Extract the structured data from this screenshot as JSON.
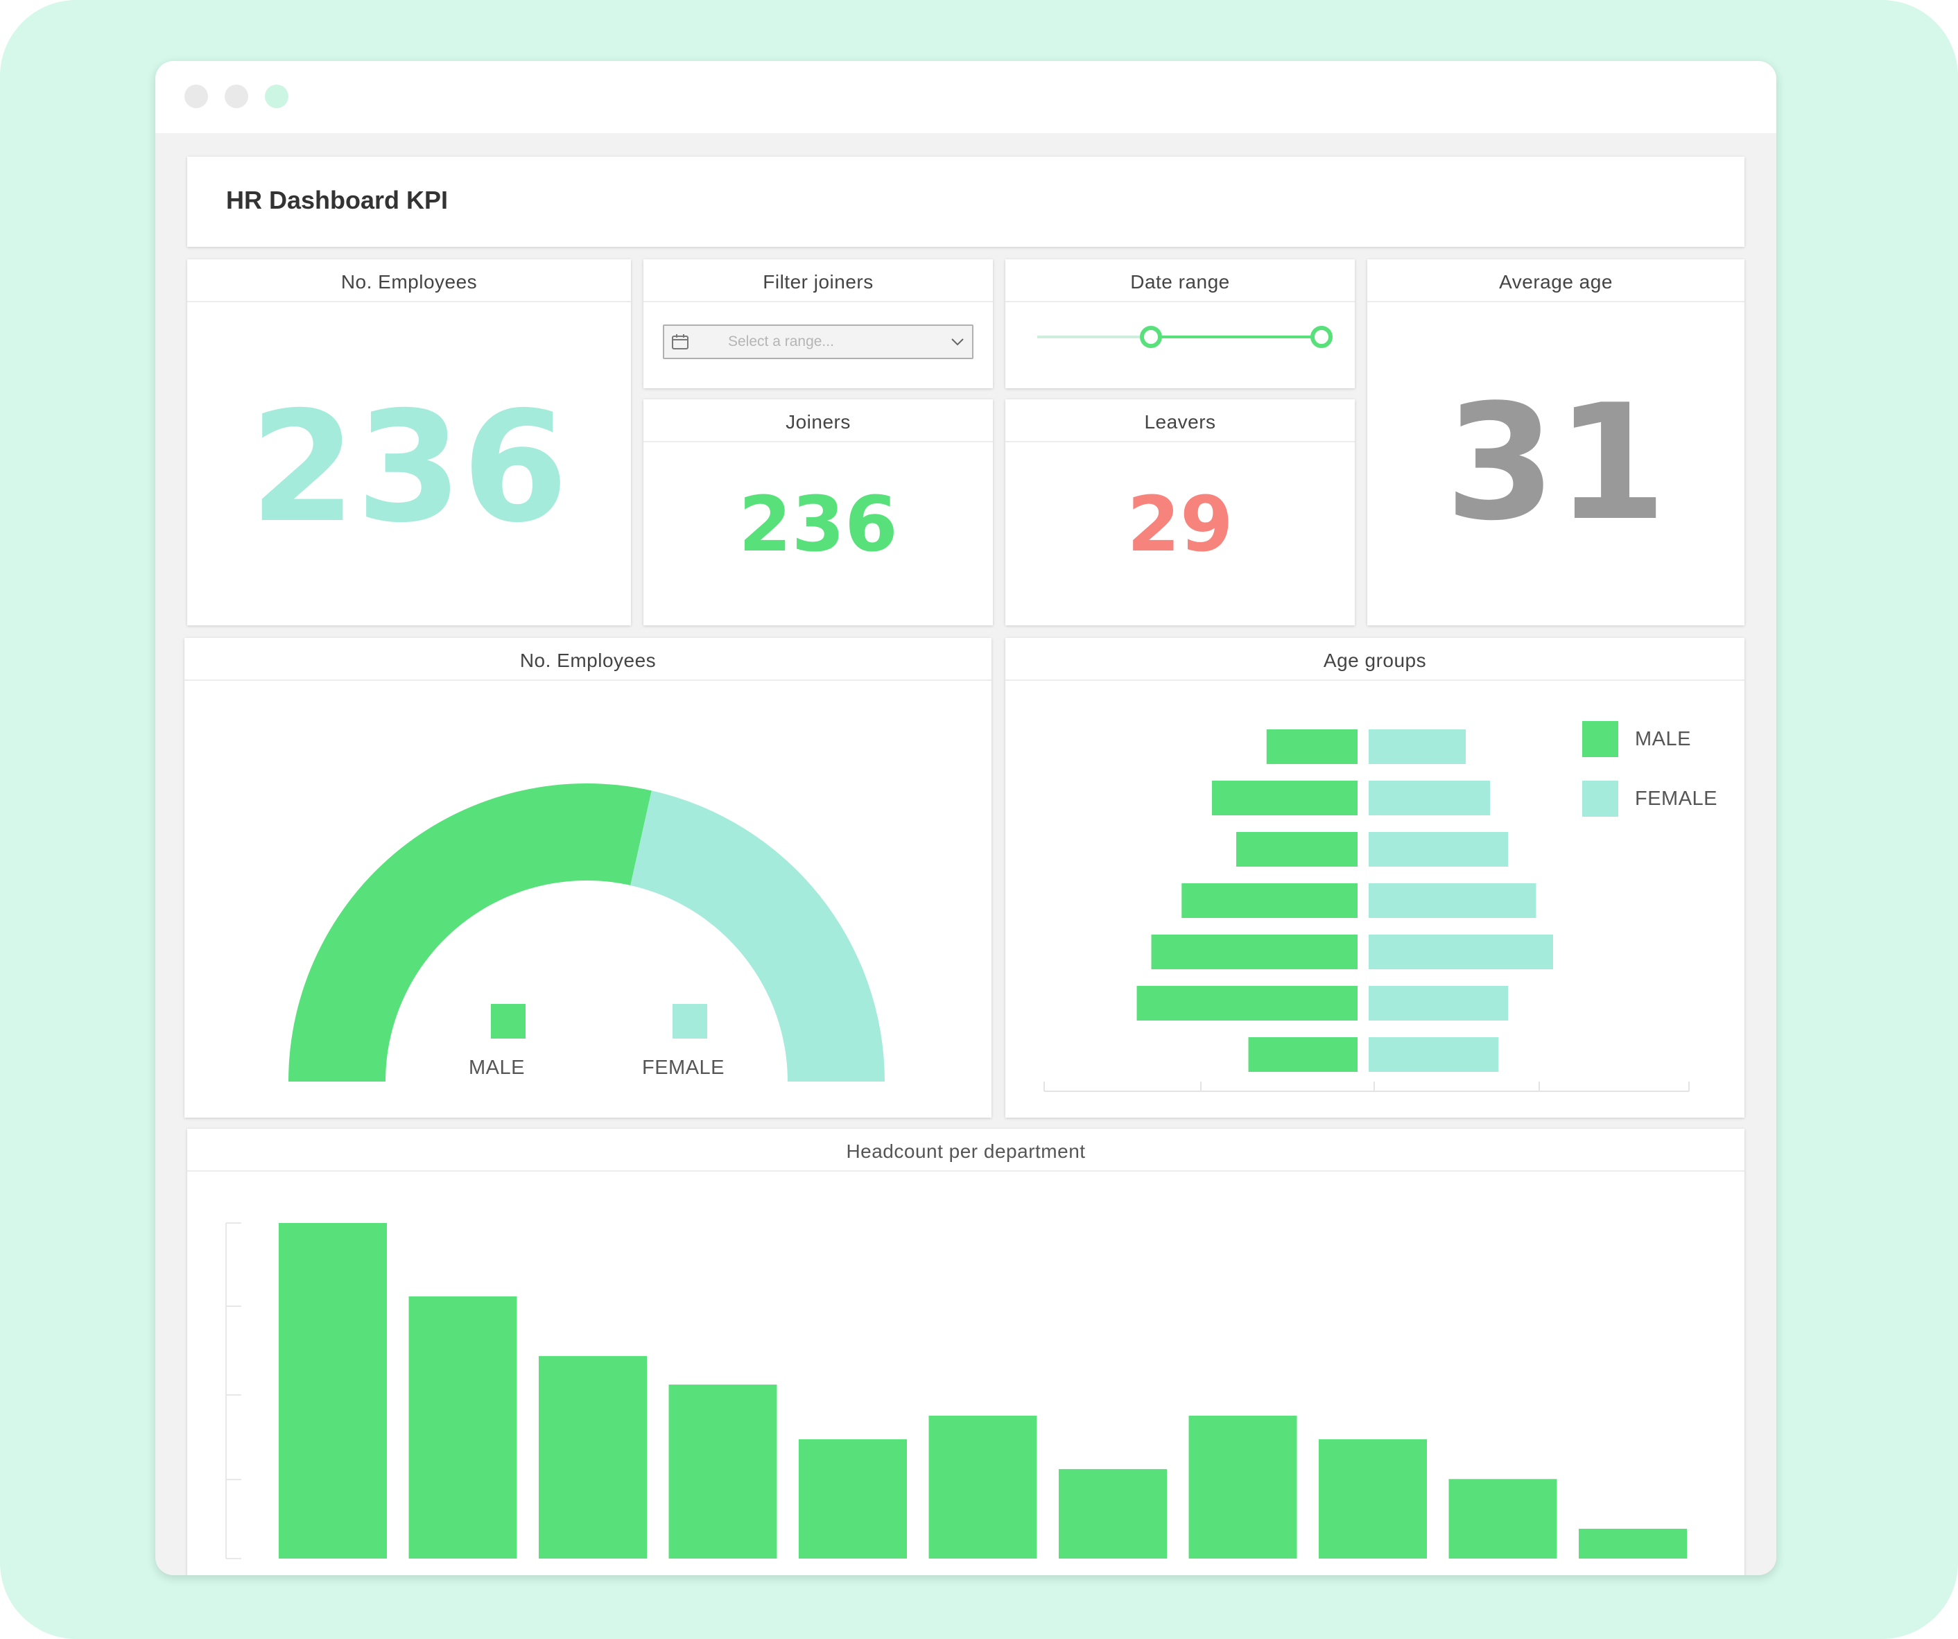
{
  "dashboard": {
    "title": "HR Dashboard KPI"
  },
  "kpi": {
    "employees": {
      "label": "No. Employees",
      "value": "236",
      "color": "#a4ebdc"
    },
    "filter_joiners": {
      "label": "Filter joiners",
      "placeholder": "Select a range..."
    },
    "date_range": {
      "label": "Date range",
      "low_fraction": 0.4,
      "high_fraction": 1.0
    },
    "average_age": {
      "label": "Average age",
      "value": "31",
      "color": "#999999"
    },
    "joiners": {
      "label": "Joiners",
      "value": "236",
      "color": "#58e07b"
    },
    "leavers": {
      "label": "Leavers",
      "value": "29",
      "color": "#f6847c"
    }
  },
  "gender_gauge": {
    "title": "No. Employees",
    "legend": {
      "male": "MALE",
      "female": "FEMALE"
    }
  },
  "age_groups": {
    "title": "Age groups",
    "legend": {
      "male": "MALE",
      "female": "FEMALE"
    }
  },
  "headcount": {
    "title": "Headcount per department"
  },
  "colors": {
    "male": "#58e07b",
    "female": "#a4ebdc",
    "accent": "#58e07b",
    "leavers": "#f6847c"
  },
  "chart_data": [
    {
      "type": "pie",
      "variant": "half-donut",
      "categories": [
        "MALE",
        "FEMALE"
      ],
      "values": [
        57,
        43
      ],
      "title": "No. Employees"
    },
    {
      "type": "bar",
      "orientation": "horizontal",
      "variant": "population-pyramid",
      "title": "Age groups",
      "rows": 7,
      "series": [
        {
          "name": "MALE",
          "values": [
            75,
            120,
            100,
            145,
            170,
            182,
            90
          ]
        },
        {
          "name": "FEMALE",
          "values": [
            80,
            100,
            115,
            138,
            152,
            115,
            107
          ]
        }
      ]
    },
    {
      "type": "bar",
      "title": "Headcount per department",
      "values": [
        270,
        211,
        163,
        140,
        96,
        115,
        72,
        115,
        96,
        64,
        24
      ],
      "ylim": [
        0,
        270
      ]
    }
  ]
}
